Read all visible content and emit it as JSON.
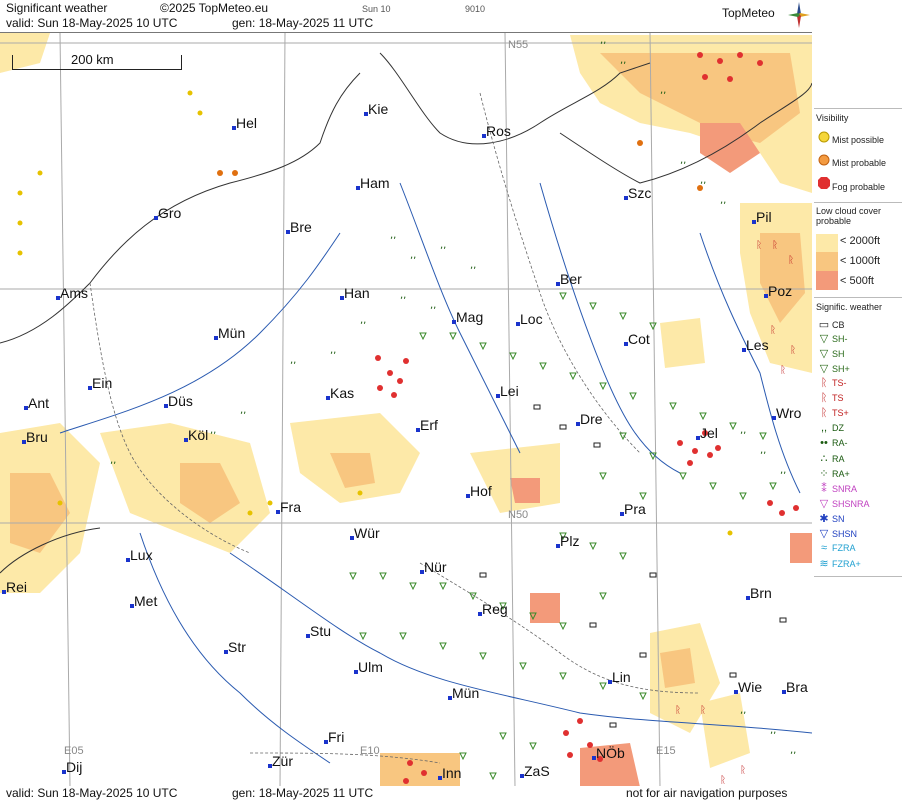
{
  "header": {
    "title": "Significant weather",
    "copyright": "©2025 TopMeteo.eu",
    "sun": "Sun 10",
    "code": "9010",
    "valid": "valid:  Sun  18-May-2025  10 UTC",
    "gen": "gen: 18-May-2025 11 UTC",
    "logo": "TopMeteo"
  },
  "footer": {
    "valid": "valid:  Sun  18-May-2025  10 UTC",
    "gen": "gen: 18-May-2025 11 UTC",
    "note": "not for air navigation purposes"
  },
  "scale": "200 km",
  "grid_labels": [
    "N55",
    "N50",
    "E05",
    "E10",
    "E15"
  ],
  "cities": [
    "Hel",
    "Kie",
    "Ros",
    "Ham",
    "Gro",
    "Bre",
    "Szc",
    "Pil",
    "Ams",
    "Han",
    "Ber",
    "Poz",
    "Mag",
    "Loc",
    "Mün",
    "Cot",
    "Les",
    "Ein",
    "Kas",
    "Lei",
    "Ant",
    "Düs",
    "Wro",
    "Bru",
    "Köl",
    "Erf",
    "Dre",
    "Jel",
    "Hof",
    "Fra",
    "Pra",
    "Lux",
    "Wür",
    "Plz",
    "Rei",
    "Nür",
    "Met",
    "Brn",
    "Reg",
    "Stu",
    "Str",
    "Ulm",
    "Lin",
    "Wie",
    "Bra",
    "Mün",
    "Fri",
    "NÖb",
    "Dij",
    "Zür",
    "Inn",
    "ZaS"
  ],
  "legend": {
    "visibility_title": "Visibility",
    "visibility": [
      "Mist possible",
      "Mist probable",
      "Fog probable"
    ],
    "low_cloud_title": "Low cloud cover probable",
    "low_cloud": [
      "< 2000ft",
      "< 1000ft",
      "<  500ft"
    ],
    "sigwx_title": "Signific. weather",
    "sigwx": [
      "CB",
      "SH-",
      "SH",
      "SH+",
      "TS-",
      "TS",
      "TS+",
      "DZ",
      "RA-",
      "RA",
      "RA+",
      "SNRA",
      "SHSNRA",
      "SN",
      "SHSN",
      "FZRA",
      "FZRA+"
    ]
  },
  "colors": {
    "cloud_2000": "#fde9a8",
    "cloud_1000": "#f8c680",
    "cloud_500": "#f39a7a",
    "fog": "#e03030",
    "shower": "#3a8a2a",
    "drizzle": "#1a5a10",
    "city": "#1a33cc"
  }
}
